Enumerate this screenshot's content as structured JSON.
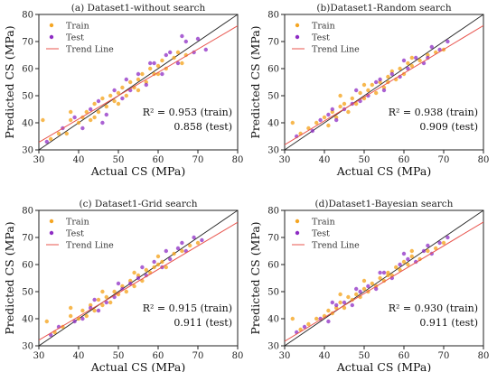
{
  "colors": {
    "train": "#f5a623",
    "test": "#8e2cc4",
    "trend": "#e8554e",
    "diag": "#222222"
  },
  "chart_data": [
    {
      "type": "scatter",
      "title": "(a) Dataset1-without search",
      "xlabel": "Actual CS (MPa)",
      "ylabel": "Predicted CS (MPa)",
      "xlim": [
        30,
        80
      ],
      "ylim": [
        30,
        80
      ],
      "xticks": [
        "30",
        "40",
        "50",
        "60",
        "70",
        "80"
      ],
      "yticks": [
        "30",
        "40",
        "50",
        "60",
        "70",
        "80"
      ],
      "legend_position": "top-left",
      "legend": [
        "Train",
        "Test",
        "Trend Line"
      ],
      "r2_train": "R² = 0.953 (train)",
      "r2_test": "0.858 (test)",
      "trend": {
        "slope": 0.86,
        "intercept": 7.0
      },
      "train_points": [
        [
          33,
          34
        ],
        [
          35,
          36
        ],
        [
          37,
          36
        ],
        [
          38,
          41
        ],
        [
          40,
          40
        ],
        [
          41,
          42
        ],
        [
          42,
          44
        ],
        [
          43,
          41
        ],
        [
          44,
          47
        ],
        [
          45,
          44
        ],
        [
          46,
          49
        ],
        [
          47,
          46
        ],
        [
          48,
          50
        ],
        [
          49,
          48
        ],
        [
          50,
          51
        ],
        [
          51,
          53
        ],
        [
          52,
          50
        ],
        [
          53,
          55
        ],
        [
          54,
          53
        ],
        [
          55,
          56
        ],
        [
          56,
          58
        ],
        [
          57,
          55
        ],
        [
          58,
          60
        ],
        [
          59,
          58
        ],
        [
          60,
          61
        ],
        [
          61,
          63
        ],
        [
          62,
          60
        ],
        [
          64,
          64
        ],
        [
          65,
          66
        ],
        [
          67,
          65
        ],
        [
          31,
          41
        ],
        [
          38,
          44
        ],
        [
          44,
          42
        ],
        [
          50,
          47
        ],
        [
          55,
          52
        ],
        [
          60,
          58
        ],
        [
          66,
          62
        ]
      ],
      "test_points": [
        [
          32,
          33
        ],
        [
          36,
          38
        ],
        [
          39,
          42
        ],
        [
          41,
          38
        ],
        [
          43,
          45
        ],
        [
          45,
          48
        ],
        [
          47,
          43
        ],
        [
          49,
          52
        ],
        [
          51,
          49
        ],
        [
          53,
          52
        ],
        [
          55,
          58
        ],
        [
          57,
          54
        ],
        [
          59,
          62
        ],
        [
          61,
          58
        ],
        [
          63,
          66
        ],
        [
          65,
          62
        ],
        [
          67,
          70
        ],
        [
          69,
          66
        ],
        [
          70,
          71
        ],
        [
          72,
          67
        ],
        [
          46,
          40
        ],
        [
          52,
          56
        ],
        [
          58,
          62
        ],
        [
          62,
          65
        ],
        [
          66,
          72
        ]
      ]
    },
    {
      "type": "scatter",
      "title": "(b)Dataset1-Random search",
      "xlabel": "Actual CS (MPa)",
      "ylabel": "Predicted CS (MPa)",
      "xlim": [
        30,
        80
      ],
      "ylim": [
        30,
        80
      ],
      "xticks": [
        "30",
        "40",
        "50",
        "60",
        "70",
        "80"
      ],
      "yticks": [
        "30",
        "40",
        "50",
        "60",
        "70",
        "80"
      ],
      "legend_position": "top-left",
      "legend": [
        "Train",
        "Test",
        "Trend Line"
      ],
      "r2_train": "R² = 0.938 (train)",
      "r2_test": "0.909 (test)",
      "trend": {
        "slope": 0.88,
        "intercept": 5.5
      },
      "train_points": [
        [
          32,
          40
        ],
        [
          34,
          36
        ],
        [
          36,
          38
        ],
        [
          38,
          40
        ],
        [
          40,
          42
        ],
        [
          41,
          39
        ],
        [
          42,
          44
        ],
        [
          43,
          42
        ],
        [
          44,
          46
        ],
        [
          45,
          47
        ],
        [
          46,
          44
        ],
        [
          47,
          49
        ],
        [
          48,
          47
        ],
        [
          49,
          51
        ],
        [
          50,
          49
        ],
        [
          51,
          52
        ],
        [
          52,
          54
        ],
        [
          53,
          51
        ],
        [
          54,
          55
        ],
        [
          55,
          53
        ],
        [
          56,
          57
        ],
        [
          57,
          59
        ],
        [
          58,
          56
        ],
        [
          59,
          60
        ],
        [
          60,
          58
        ],
        [
          61,
          62
        ],
        [
          62,
          61
        ],
        [
          64,
          63
        ],
        [
          66,
          65
        ],
        [
          68,
          66
        ],
        [
          44,
          50
        ],
        [
          50,
          54
        ],
        [
          56,
          55
        ],
        [
          62,
          64
        ],
        [
          70,
          67
        ]
      ],
      "test_points": [
        [
          33,
          35
        ],
        [
          37,
          37
        ],
        [
          39,
          41
        ],
        [
          41,
          43
        ],
        [
          43,
          41
        ],
        [
          45,
          45
        ],
        [
          47,
          47
        ],
        [
          49,
          48
        ],
        [
          51,
          50
        ],
        [
          53,
          55
        ],
        [
          55,
          52
        ],
        [
          57,
          58
        ],
        [
          59,
          57
        ],
        [
          61,
          60
        ],
        [
          63,
          64
        ],
        [
          65,
          62
        ],
        [
          67,
          68
        ],
        [
          69,
          67
        ],
        [
          71,
          70
        ],
        [
          42,
          45
        ],
        [
          48,
          52
        ],
        [
          54,
          56
        ],
        [
          60,
          63
        ],
        [
          66,
          64
        ]
      ]
    },
    {
      "type": "scatter",
      "title": "(c) Dataset1-Grid search",
      "xlabel": "Actual CS (MPa)",
      "ylabel": "Predicted CS (MPa)",
      "xlim": [
        30,
        80
      ],
      "ylim": [
        30,
        80
      ],
      "xticks": [
        "30",
        "40",
        "50",
        "60",
        "70",
        "80"
      ],
      "yticks": [
        "30",
        "40",
        "50",
        "60",
        "70",
        "80"
      ],
      "legend_position": "top-left",
      "legend": [
        "Train",
        "Test",
        "Trend Line"
      ],
      "r2_train": "R² = 0.915 (train)",
      "r2_test": "0.911 (test)",
      "trend": {
        "slope": 0.87,
        "intercept": 6.0
      },
      "train_points": [
        [
          32,
          39
        ],
        [
          34,
          35
        ],
        [
          36,
          37
        ],
        [
          38,
          41
        ],
        [
          40,
          40
        ],
        [
          41,
          43
        ],
        [
          42,
          41
        ],
        [
          43,
          45
        ],
        [
          44,
          43
        ],
        [
          45,
          47
        ],
        [
          46,
          45
        ],
        [
          47,
          48
        ],
        [
          48,
          46
        ],
        [
          49,
          50
        ],
        [
          50,
          49
        ],
        [
          51,
          52
        ],
        [
          52,
          50
        ],
        [
          53,
          54
        ],
        [
          54,
          52
        ],
        [
          55,
          56
        ],
        [
          56,
          54
        ],
        [
          57,
          58
        ],
        [
          58,
          57
        ],
        [
          59,
          59
        ],
        [
          60,
          60
        ],
        [
          61,
          61
        ],
        [
          62,
          59
        ],
        [
          64,
          64
        ],
        [
          66,
          65
        ],
        [
          68,
          67
        ],
        [
          38,
          44
        ],
        [
          46,
          50
        ],
        [
          54,
          57
        ],
        [
          60,
          63
        ],
        [
          70,
          68
        ]
      ],
      "test_points": [
        [
          33,
          34
        ],
        [
          35,
          37
        ],
        [
          39,
          39
        ],
        [
          41,
          40
        ],
        [
          43,
          44
        ],
        [
          45,
          43
        ],
        [
          47,
          46
        ],
        [
          49,
          48
        ],
        [
          51,
          51
        ],
        [
          53,
          53
        ],
        [
          55,
          55
        ],
        [
          57,
          56
        ],
        [
          59,
          61
        ],
        [
          61,
          59
        ],
        [
          63,
          62
        ],
        [
          65,
          66
        ],
        [
          67,
          65
        ],
        [
          69,
          70
        ],
        [
          71,
          69
        ],
        [
          44,
          47
        ],
        [
          50,
          53
        ],
        [
          56,
          59
        ],
        [
          62,
          65
        ],
        [
          66,
          68
        ]
      ]
    },
    {
      "type": "scatter",
      "title": "(d)Dataset1-Bayesian search",
      "xlabel": "Actual CS (MPa)",
      "ylabel": "Predicted CS (MPa)",
      "xlim": [
        30,
        80
      ],
      "ylim": [
        30,
        80
      ],
      "xticks": [
        "30",
        "40",
        "50",
        "60",
        "70",
        "80"
      ],
      "yticks": [
        "30",
        "40",
        "50",
        "60",
        "70",
        "80"
      ],
      "legend_position": "top-left",
      "legend": [
        "Train",
        "Test",
        "Trend Line"
      ],
      "r2_train": "R² = 0.930 (train)",
      "r2_test": "0.911 (test)",
      "trend": {
        "slope": 0.88,
        "intercept": 5.3
      },
      "train_points": [
        [
          32,
          40
        ],
        [
          34,
          36
        ],
        [
          36,
          38
        ],
        [
          38,
          40
        ],
        [
          40,
          41
        ],
        [
          41,
          43
        ],
        [
          42,
          42
        ],
        [
          43,
          44
        ],
        [
          44,
          46
        ],
        [
          45,
          44
        ],
        [
          46,
          48
        ],
        [
          47,
          47
        ],
        [
          48,
          49
        ],
        [
          49,
          48
        ],
        [
          50,
          51
        ],
        [
          51,
          50
        ],
        [
          52,
          53
        ],
        [
          53,
          52
        ],
        [
          54,
          55
        ],
        [
          55,
          54
        ],
        [
          56,
          57
        ],
        [
          57,
          56
        ],
        [
          58,
          59
        ],
        [
          59,
          58
        ],
        [
          60,
          61
        ],
        [
          61,
          60
        ],
        [
          62,
          63
        ],
        [
          64,
          62
        ],
        [
          66,
          65
        ],
        [
          68,
          66
        ],
        [
          44,
          49
        ],
        [
          50,
          54
        ],
        [
          56,
          56
        ],
        [
          62,
          65
        ],
        [
          70,
          68
        ]
      ],
      "test_points": [
        [
          33,
          35
        ],
        [
          35,
          37
        ],
        [
          39,
          40
        ],
        [
          41,
          39
        ],
        [
          43,
          45
        ],
        [
          45,
          46
        ],
        [
          47,
          45
        ],
        [
          49,
          50
        ],
        [
          51,
          52
        ],
        [
          53,
          51
        ],
        [
          55,
          57
        ],
        [
          57,
          55
        ],
        [
          59,
          60
        ],
        [
          61,
          62
        ],
        [
          63,
          61
        ],
        [
          65,
          65
        ],
        [
          67,
          64
        ],
        [
          69,
          68
        ],
        [
          71,
          70
        ],
        [
          42,
          46
        ],
        [
          48,
          51
        ],
        [
          54,
          57
        ],
        [
          60,
          64
        ],
        [
          66,
          67
        ]
      ]
    }
  ]
}
